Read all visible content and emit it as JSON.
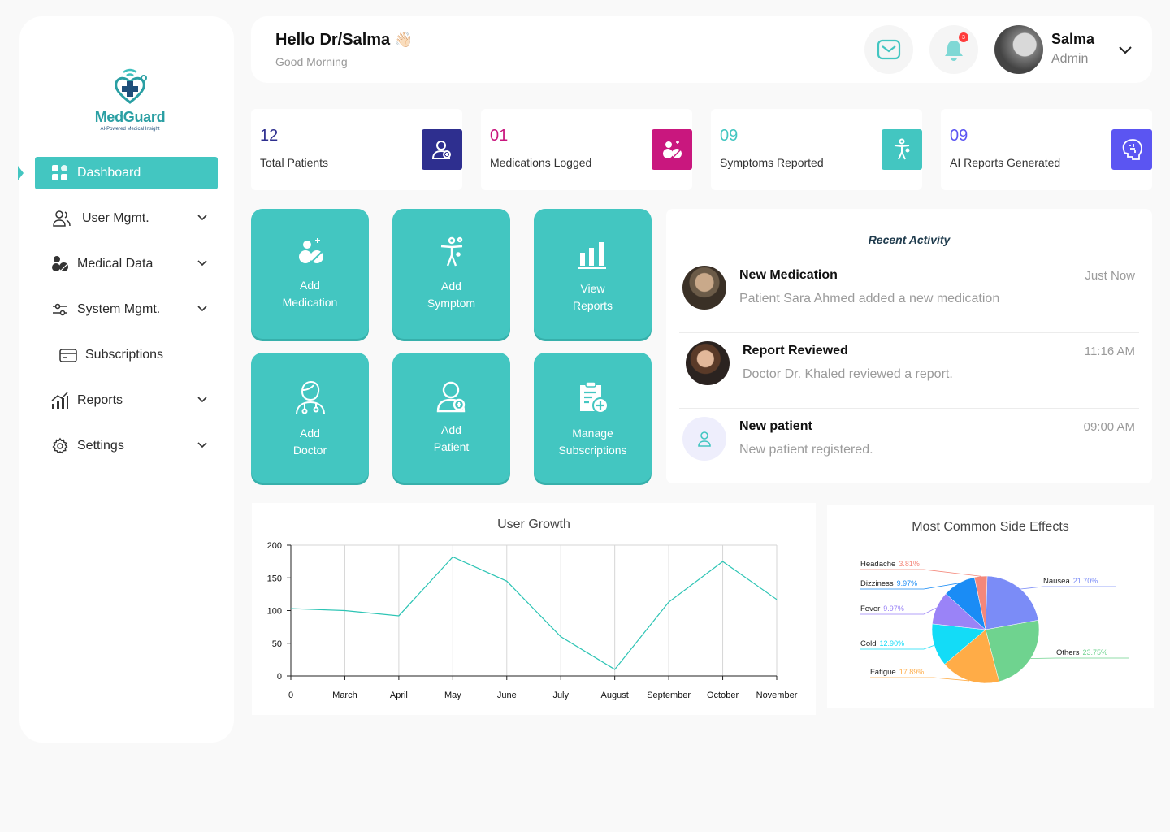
{
  "app": {
    "brand": "MedGuard",
    "tagline": "AI-Powered Medical Insight",
    "accent": "#43c6c1"
  },
  "sidebar": {
    "items": [
      {
        "label": "Dashboard",
        "icon": "dashboard-grid-icon",
        "active": true
      },
      {
        "label": "User Mgmt.",
        "icon": "users-icon",
        "expandable": true
      },
      {
        "label": "Medical Data",
        "icon": "pills-icon",
        "expandable": true
      },
      {
        "label": "System Mgmt.",
        "icon": "sliders-icon",
        "expandable": true
      },
      {
        "label": "Subscriptions",
        "icon": "card-icon",
        "sub": true
      },
      {
        "label": "Reports",
        "icon": "bar-chart-icon",
        "expandable": true
      },
      {
        "label": "Settings",
        "icon": "gear-icon",
        "expandable": true
      }
    ]
  },
  "header": {
    "greeting": "Hello Dr/Salma",
    "greeting_emoji": "👋🏻",
    "subtitle": "Good Morning",
    "notification_count": "3",
    "user_name": "Salma",
    "user_role": "Admin"
  },
  "stats": [
    {
      "value": "12",
      "label": "Total Patients",
      "color": "#2e2f8f",
      "icon": "add-user-icon"
    },
    {
      "value": "01",
      "label": "Medications Logged",
      "color": "#c9177e",
      "icon": "pills-icon"
    },
    {
      "value": "09",
      "label": "Symptoms Reported",
      "color": "#43c6c1",
      "icon": "body-icon"
    },
    {
      "value": "09",
      "label": "AI Reports Generated",
      "color": "#5b55f2",
      "icon": "ai-brain-icon"
    }
  ],
  "quick_actions": [
    {
      "line1": "Add",
      "line2": "Medication",
      "icon": "pills-icon"
    },
    {
      "line1": "Add",
      "line2": "Symptom",
      "icon": "body-icon"
    },
    {
      "line1": "View",
      "line2": "Reports",
      "icon": "bar-chart-icon"
    },
    {
      "line1": "Add",
      "line2": "Doctor",
      "icon": "doctor-icon"
    },
    {
      "line1": "Add",
      "line2": "Patient",
      "icon": "add-user-icon"
    },
    {
      "line1": "Manage",
      "line2": "Subscriptions",
      "icon": "clipboard-plus-icon"
    }
  ],
  "activity": {
    "title": "Recent Activity",
    "items": [
      {
        "title": "New Medication",
        "desc": "Patient Sara Ahmed added a new medication",
        "time": "Just Now"
      },
      {
        "title": "Report Reviewed",
        "desc": "Doctor Dr. Khaled reviewed a report.",
        "time": "11:16 AM"
      },
      {
        "title": "New patient",
        "desc": "New patient registered.",
        "time": "09:00 AM"
      }
    ]
  },
  "line_chart": {
    "chart_data": {
      "type": "line",
      "title": "User Growth",
      "categories": [
        "0",
        "March",
        "April",
        "May",
        "June",
        "July",
        "August",
        "September",
        "October",
        "November"
      ],
      "values": [
        103,
        100,
        92,
        182,
        145,
        60,
        10,
        113,
        175,
        117
      ],
      "y_ticks": [
        "0",
        "50",
        "100",
        "150",
        "200"
      ],
      "ylim": [
        0,
        200
      ],
      "grid": true,
      "line_color": "#2cc4b4"
    }
  },
  "pie_chart": {
    "chart_data": {
      "type": "pie",
      "title": "Most Common Side Effects",
      "slices": [
        {
          "name": "Nausea",
          "label": "21.70%",
          "value": 21.7,
          "color": "#7b8cf7"
        },
        {
          "name": "Others",
          "label": "23.75%",
          "value": 23.75,
          "color": "#6fd38f"
        },
        {
          "name": "Fatigue",
          "label": "17.89%",
          "value": 17.89,
          "color": "#ffac47"
        },
        {
          "name": "Cold",
          "label": "12.90%",
          "value": 12.9,
          "color": "#13dcf7"
        },
        {
          "name": "Fever",
          "label": "9.97%",
          "value": 9.97,
          "color": "#9a83f7"
        },
        {
          "name": "Dizziness",
          "label": "9.97%",
          "value": 9.97,
          "color": "#1a8cf5"
        },
        {
          "name": "Headache",
          "label": "3.81%",
          "value": 3.81,
          "color": "#f4877a"
        }
      ]
    }
  }
}
